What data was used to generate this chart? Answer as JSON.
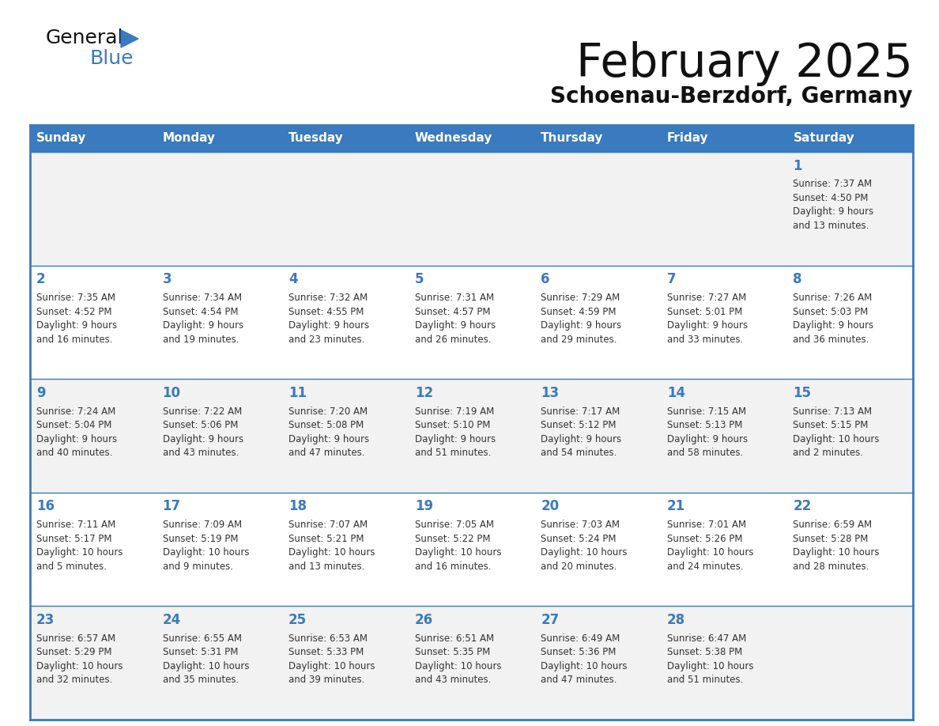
{
  "title": "February 2025",
  "subtitle": "Schoenau-Berzdorf, Germany",
  "header_color": "#3a7abf",
  "header_text_color": "#ffffff",
  "cell_bg_even": "#f2f2f2",
  "cell_bg_odd": "#ffffff",
  "day_number_color": "#3a7abf",
  "info_text_color": "#333333",
  "border_color": "#3a7abf",
  "days_of_week": [
    "Sunday",
    "Monday",
    "Tuesday",
    "Wednesday",
    "Thursday",
    "Friday",
    "Saturday"
  ],
  "weeks": [
    [
      {
        "day": null,
        "info": null
      },
      {
        "day": null,
        "info": null
      },
      {
        "day": null,
        "info": null
      },
      {
        "day": null,
        "info": null
      },
      {
        "day": null,
        "info": null
      },
      {
        "day": null,
        "info": null
      },
      {
        "day": 1,
        "info": "Sunrise: 7:37 AM\nSunset: 4:50 PM\nDaylight: 9 hours\nand 13 minutes."
      }
    ],
    [
      {
        "day": 2,
        "info": "Sunrise: 7:35 AM\nSunset: 4:52 PM\nDaylight: 9 hours\nand 16 minutes."
      },
      {
        "day": 3,
        "info": "Sunrise: 7:34 AM\nSunset: 4:54 PM\nDaylight: 9 hours\nand 19 minutes."
      },
      {
        "day": 4,
        "info": "Sunrise: 7:32 AM\nSunset: 4:55 PM\nDaylight: 9 hours\nand 23 minutes."
      },
      {
        "day": 5,
        "info": "Sunrise: 7:31 AM\nSunset: 4:57 PM\nDaylight: 9 hours\nand 26 minutes."
      },
      {
        "day": 6,
        "info": "Sunrise: 7:29 AM\nSunset: 4:59 PM\nDaylight: 9 hours\nand 29 minutes."
      },
      {
        "day": 7,
        "info": "Sunrise: 7:27 AM\nSunset: 5:01 PM\nDaylight: 9 hours\nand 33 minutes."
      },
      {
        "day": 8,
        "info": "Sunrise: 7:26 AM\nSunset: 5:03 PM\nDaylight: 9 hours\nand 36 minutes."
      }
    ],
    [
      {
        "day": 9,
        "info": "Sunrise: 7:24 AM\nSunset: 5:04 PM\nDaylight: 9 hours\nand 40 minutes."
      },
      {
        "day": 10,
        "info": "Sunrise: 7:22 AM\nSunset: 5:06 PM\nDaylight: 9 hours\nand 43 minutes."
      },
      {
        "day": 11,
        "info": "Sunrise: 7:20 AM\nSunset: 5:08 PM\nDaylight: 9 hours\nand 47 minutes."
      },
      {
        "day": 12,
        "info": "Sunrise: 7:19 AM\nSunset: 5:10 PM\nDaylight: 9 hours\nand 51 minutes."
      },
      {
        "day": 13,
        "info": "Sunrise: 7:17 AM\nSunset: 5:12 PM\nDaylight: 9 hours\nand 54 minutes."
      },
      {
        "day": 14,
        "info": "Sunrise: 7:15 AM\nSunset: 5:13 PM\nDaylight: 9 hours\nand 58 minutes."
      },
      {
        "day": 15,
        "info": "Sunrise: 7:13 AM\nSunset: 5:15 PM\nDaylight: 10 hours\nand 2 minutes."
      }
    ],
    [
      {
        "day": 16,
        "info": "Sunrise: 7:11 AM\nSunset: 5:17 PM\nDaylight: 10 hours\nand 5 minutes."
      },
      {
        "day": 17,
        "info": "Sunrise: 7:09 AM\nSunset: 5:19 PM\nDaylight: 10 hours\nand 9 minutes."
      },
      {
        "day": 18,
        "info": "Sunrise: 7:07 AM\nSunset: 5:21 PM\nDaylight: 10 hours\nand 13 minutes."
      },
      {
        "day": 19,
        "info": "Sunrise: 7:05 AM\nSunset: 5:22 PM\nDaylight: 10 hours\nand 16 minutes."
      },
      {
        "day": 20,
        "info": "Sunrise: 7:03 AM\nSunset: 5:24 PM\nDaylight: 10 hours\nand 20 minutes."
      },
      {
        "day": 21,
        "info": "Sunrise: 7:01 AM\nSunset: 5:26 PM\nDaylight: 10 hours\nand 24 minutes."
      },
      {
        "day": 22,
        "info": "Sunrise: 6:59 AM\nSunset: 5:28 PM\nDaylight: 10 hours\nand 28 minutes."
      }
    ],
    [
      {
        "day": 23,
        "info": "Sunrise: 6:57 AM\nSunset: 5:29 PM\nDaylight: 10 hours\nand 32 minutes."
      },
      {
        "day": 24,
        "info": "Sunrise: 6:55 AM\nSunset: 5:31 PM\nDaylight: 10 hours\nand 35 minutes."
      },
      {
        "day": 25,
        "info": "Sunrise: 6:53 AM\nSunset: 5:33 PM\nDaylight: 10 hours\nand 39 minutes."
      },
      {
        "day": 26,
        "info": "Sunrise: 6:51 AM\nSunset: 5:35 PM\nDaylight: 10 hours\nand 43 minutes."
      },
      {
        "day": 27,
        "info": "Sunrise: 6:49 AM\nSunset: 5:36 PM\nDaylight: 10 hours\nand 47 minutes."
      },
      {
        "day": 28,
        "info": "Sunrise: 6:47 AM\nSunset: 5:38 PM\nDaylight: 10 hours\nand 51 minutes."
      },
      {
        "day": null,
        "info": null
      }
    ]
  ]
}
